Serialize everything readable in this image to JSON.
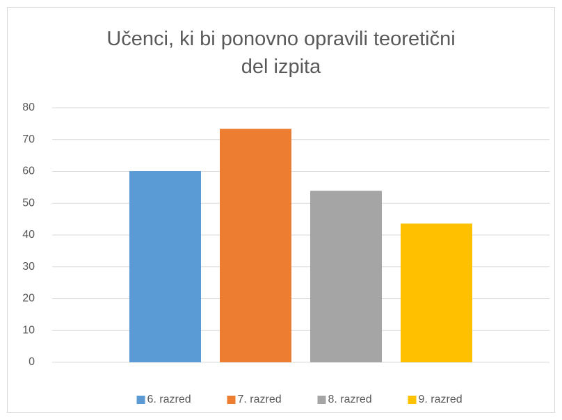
{
  "chart_data": {
    "type": "bar",
    "title": "Učenci, ki bi ponovno opravili teoretični del izpita",
    "categories": [
      null
    ],
    "series": [
      {
        "name": "6. razred",
        "color": "#5b9bd5",
        "values": [
          60.1
        ]
      },
      {
        "name": "7. razred",
        "color": "#ed7d31",
        "values": [
          73.4
        ]
      },
      {
        "name": "8. razred",
        "color": "#a5a5a5",
        "values": [
          53.9
        ]
      },
      {
        "name": "9. razred",
        "color": "#ffc000",
        "values": [
          43.6
        ]
      }
    ],
    "ylim": [
      0,
      80
    ],
    "yticks": [
      0,
      10,
      20,
      30,
      40,
      50,
      60,
      70,
      80
    ],
    "grid": true,
    "legend": "bottom"
  }
}
